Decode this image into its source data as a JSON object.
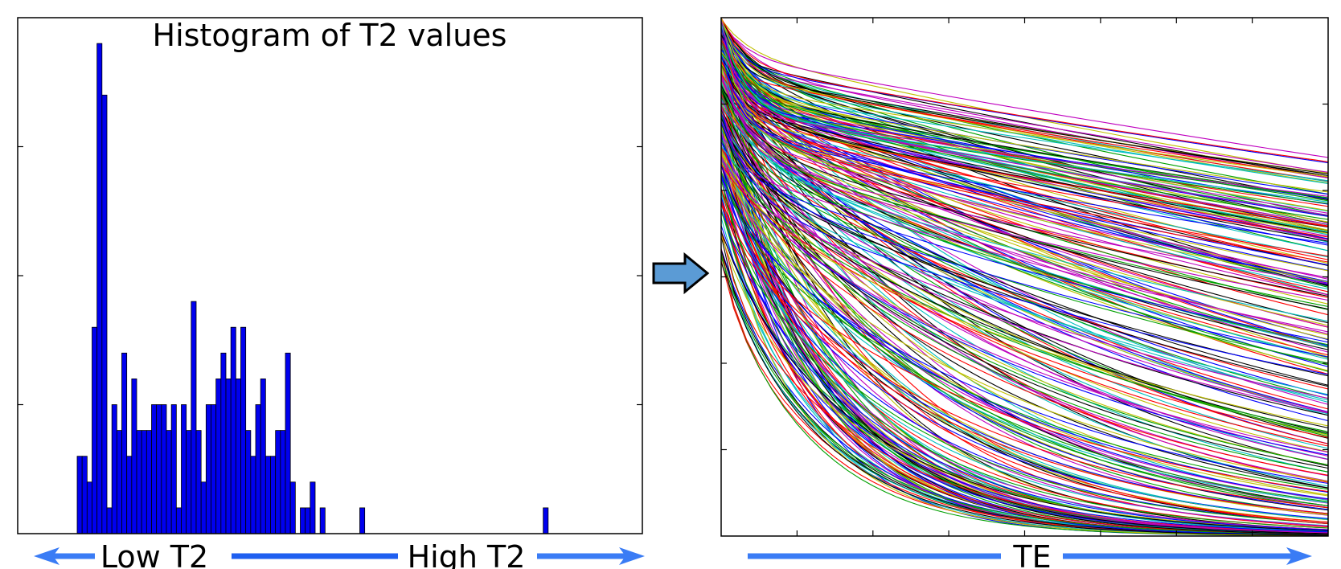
{
  "colors": {
    "bar_fill": "#0000ee",
    "bar_edge": "#000000",
    "arrow_fill": "#5b9bd5",
    "axis_arrow": "#3a7cf5",
    "curve_palette": [
      "#0000ff",
      "#00a000",
      "#ff0000",
      "#00bfbf",
      "#bf00bf",
      "#bfbf00",
      "#000000"
    ]
  },
  "labels": {
    "low_t2": "Low T2",
    "high_t2": "High T2",
    "te": "TE"
  },
  "chart_data": [
    {
      "type": "bar",
      "title": "Histogram of T2 values",
      "xlabel": "",
      "ylabel": "",
      "x_range": [
        0,
        126
      ],
      "ylim": [
        0,
        20
      ],
      "y_ticks": [
        5,
        10,
        15
      ],
      "grid": false,
      "bin_width": 1,
      "bin_starts": [
        12,
        13,
        14,
        15,
        16,
        17,
        18,
        19,
        20,
        21,
        22,
        23,
        24,
        25,
        26,
        27,
        28,
        29,
        30,
        31,
        32,
        33,
        34,
        35,
        36,
        37,
        38,
        39,
        40,
        41,
        42,
        43,
        44,
        45,
        46,
        47,
        48,
        49,
        50,
        51,
        52,
        53,
        54,
        55,
        56,
        57,
        58,
        59,
        60,
        61,
        62,
        63,
        64,
        69,
        106
      ],
      "values": [
        3,
        3,
        2,
        8,
        19,
        17,
        1,
        5,
        4,
        7,
        3,
        6,
        4,
        4,
        4,
        5,
        5,
        5,
        4,
        5,
        1,
        5,
        4,
        9,
        4,
        2,
        5,
        5,
        6,
        7,
        6,
        8,
        6,
        8,
        4,
        3,
        5,
        6,
        3,
        3,
        4,
        4,
        7,
        2,
        0,
        1,
        1,
        2,
        0,
        1,
        0,
        0,
        0,
        1,
        1
      ]
    },
    {
      "type": "line",
      "title": "",
      "xlabel": "TE",
      "ylabel": "",
      "series_count": 300,
      "model": "decaying signal curves, one per T2 value, from a common start at TE = 0",
      "grid": false,
      "legend": "none"
    }
  ]
}
